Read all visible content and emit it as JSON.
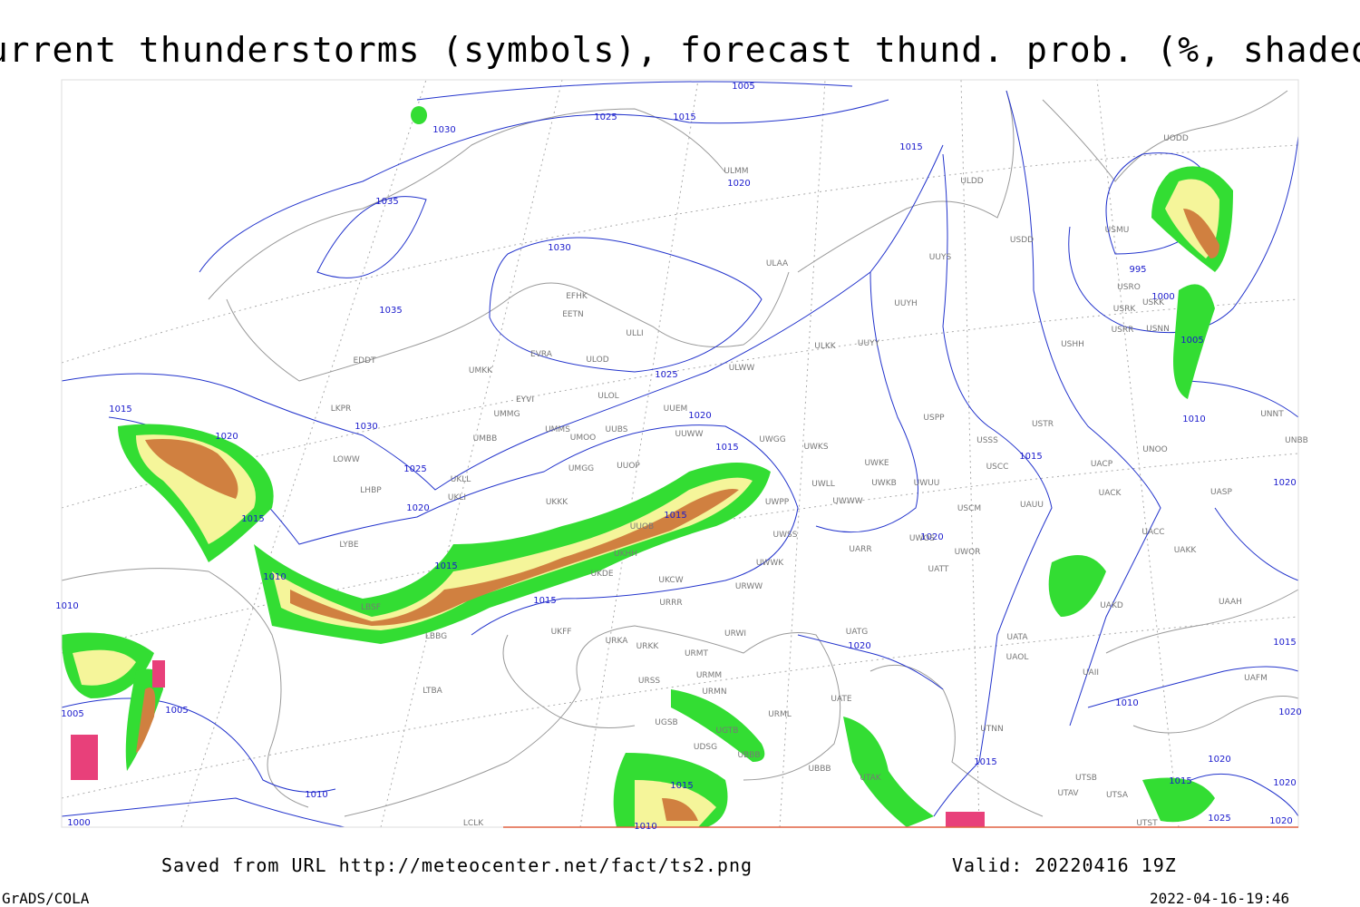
{
  "header": {
    "title": "Current thunderstorms (symbols), forecast thund. prob. (%, shaded)"
  },
  "isobar_labels": [
    "1005",
    "1025",
    "1015",
    "1030",
    "1015",
    "1020",
    "1035",
    "1030",
    "995",
    "1000",
    "1035",
    "1005",
    "1025",
    "1015",
    "1020",
    "1010",
    "1030",
    "1020",
    "1015",
    "1015",
    "1025",
    "1020",
    "1020",
    "1015",
    "1015",
    "1020",
    "1015",
    "1010",
    "1015",
    "1010",
    "1015",
    "1020",
    "1005",
    "1005",
    "1010",
    "1020",
    "1015",
    "1020",
    "1015",
    "1015",
    "1020",
    "1010",
    "1000",
    "1025",
    "1020",
    "1010"
  ],
  "stations": [
    "ULMM",
    "ULDD",
    "USDD",
    "USMU",
    "ULAA",
    "UUYS",
    "USRO",
    "USRK",
    "USKK",
    "UUYH",
    "USRR",
    "USNN",
    "EFHK",
    "EETN",
    "ULLI",
    "USHH",
    "UUYY",
    "ULKK",
    "EVRA",
    "ULOD",
    "EDDT",
    "UMKK",
    "ULWW",
    "EYVI",
    "ULOL",
    "LKPR",
    "UMMG",
    "UUEM",
    "USPP",
    "UNNT",
    "UMMS",
    "UUBS",
    "UMOO",
    "UUWW",
    "UWGG",
    "UMBB",
    "UWKS",
    "USTR",
    "USSS",
    "UNOO",
    "UNBB",
    "LOWW",
    "UWKE",
    "UACP",
    "UMGG",
    "UUOP",
    "USCC",
    "UKLL",
    "UWLL",
    "UWKB",
    "UWUU",
    "UACK",
    "UASP",
    "UKLI",
    "UKKK",
    "UWPP",
    "UWWW",
    "LHBP",
    "USCM",
    "UAUU",
    "UUOB",
    "UACC",
    "UWSS",
    "LYBE",
    "UKHH",
    "UWOS",
    "UARR",
    "UAKK",
    "UWOR",
    "UKDE",
    "UWWK",
    "UATT",
    "UKCW",
    "URWW",
    "UAKD",
    "UAAH",
    "URRR",
    "LBSF",
    "UKFF",
    "URWI",
    "UATG",
    "UATA",
    "LBBG",
    "URKA",
    "URKK",
    "URMT",
    "UAOL",
    "UAFM",
    "URSS",
    "URMM",
    "URMN",
    "UATE",
    "UAII",
    "LTBA",
    "UGSB",
    "UGTB",
    "URML",
    "UTNN",
    "UDSG",
    "UBBB",
    "UBBB",
    "UTSB",
    "UTAV",
    "UTSA",
    "UTST",
    "LCLK",
    "UTAK",
    "UODD"
  ],
  "footer": {
    "source": "Saved from URL http://meteocenter.net/fact/ts2.png",
    "valid": "Valid: 20220416 19Z",
    "software": "GrADS/COLA",
    "timestamp": "2022-04-16-19:46"
  }
}
